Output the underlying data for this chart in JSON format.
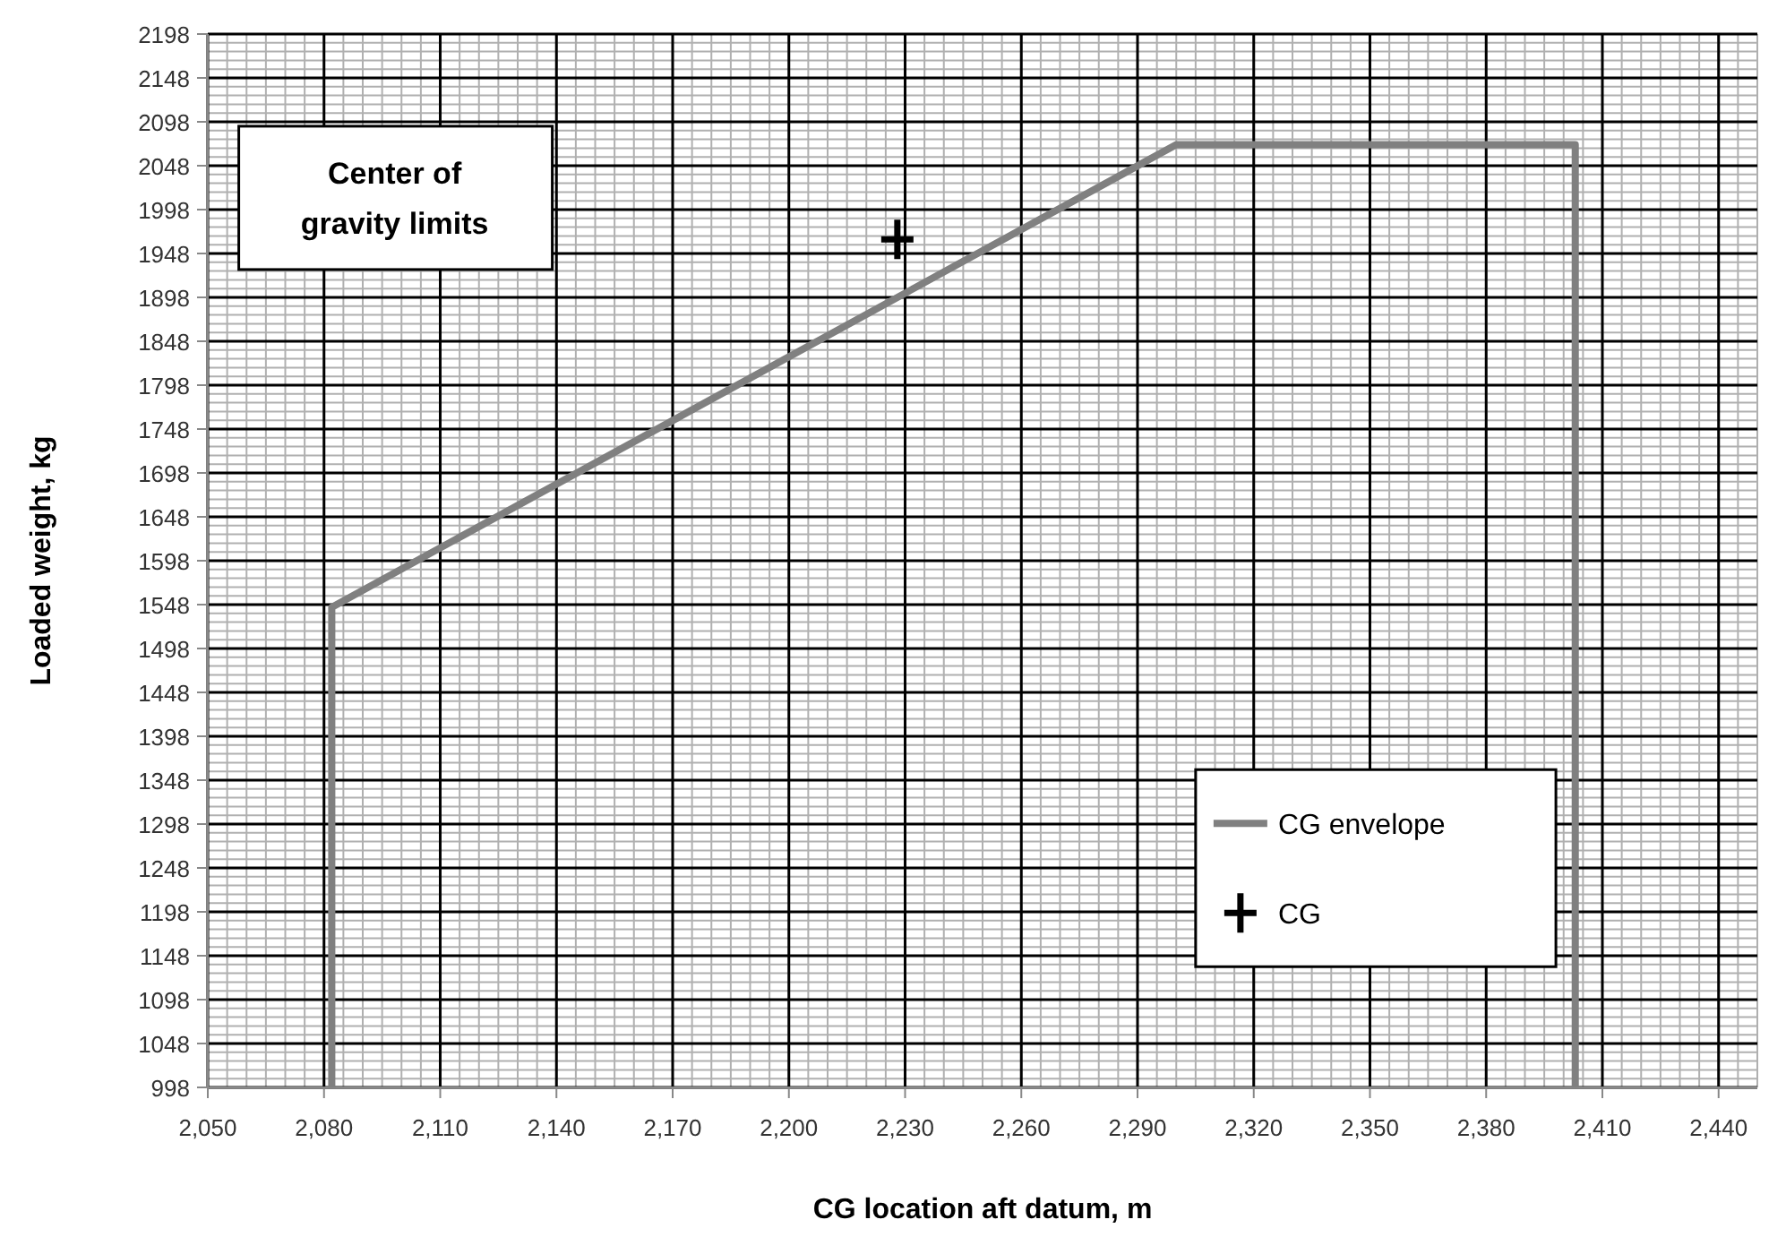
{
  "chart_data": {
    "type": "line",
    "xlabel": "CG location aft datum, m",
    "ylabel": "Loaded weight, kg",
    "annotations": [
      "Center of gravity limits"
    ],
    "xlim": [
      2050,
      2450
    ],
    "ylim": [
      998,
      2198
    ],
    "xticks": [
      {
        "value": 2050,
        "label": "2,050"
      },
      {
        "value": 2080,
        "label": "2,080"
      },
      {
        "value": 2110,
        "label": "2,110"
      },
      {
        "value": 2140,
        "label": "2,140"
      },
      {
        "value": 2170,
        "label": "2,170"
      },
      {
        "value": 2200,
        "label": "2,200"
      },
      {
        "value": 2230,
        "label": "2,230"
      },
      {
        "value": 2260,
        "label": "2,260"
      },
      {
        "value": 2290,
        "label": "2,290"
      },
      {
        "value": 2320,
        "label": "2,320"
      },
      {
        "value": 2350,
        "label": "2,350"
      },
      {
        "value": 2380,
        "label": "2,380"
      },
      {
        "value": 2410,
        "label": "2,410"
      },
      {
        "value": 2440,
        "label": "2,440"
      }
    ],
    "yticks": [
      998,
      1048,
      1098,
      1148,
      1198,
      1248,
      1298,
      1348,
      1398,
      1448,
      1498,
      1548,
      1598,
      1648,
      1698,
      1748,
      1798,
      1848,
      1898,
      1948,
      1998,
      2048,
      2098,
      2148,
      2198
    ],
    "grid": true,
    "legend": "right",
    "series": [
      {
        "name": "CG envelope",
        "color": "#808080",
        "marker": "none",
        "x": [
          2082,
          2082,
          2300,
          2403,
          2403
        ],
        "values": [
          998,
          1545,
          2072,
          2072,
          998
        ]
      },
      {
        "name": "CG",
        "type": "scatter",
        "color": "#000000",
        "marker": "cross",
        "x": [
          2228
        ],
        "values": [
          1964
        ]
      }
    ]
  }
}
